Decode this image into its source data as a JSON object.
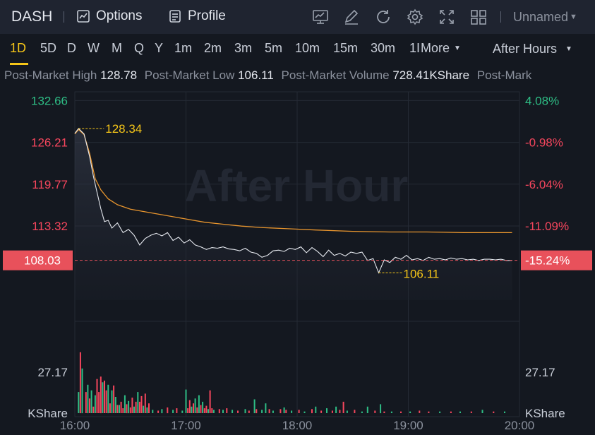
{
  "header": {
    "ticker": "DASH",
    "options_label": "Options",
    "profile_label": "Profile",
    "layout_name": "Unnamed"
  },
  "toolbar_icons": [
    "chart-icon",
    "edit-icon",
    "refresh-icon",
    "gear-icon",
    "fullscreen-icon",
    "grid-icon"
  ],
  "periods": [
    "1D",
    "5D",
    "D",
    "W",
    "M",
    "Q",
    "Y",
    "1m",
    "2m",
    "3m",
    "5m",
    "10m",
    "15m",
    "30m",
    "1I"
  ],
  "active_period": "1D",
  "more_label": "More",
  "session_label": "After Hours",
  "stats": {
    "high_label": "Post-Market High",
    "high_value": "128.78",
    "low_label": "Post-Market Low",
    "low_value": "106.11",
    "volume_label": "Post-Market Volume",
    "volume_value": "728.41KShare",
    "trailing_label": "Post-Mark"
  },
  "colors": {
    "accent": "#f5c518",
    "up": "#2ebd85",
    "down": "#f6465d",
    "price_box": "#e8515b",
    "avg_line": "#e8952e"
  },
  "chart_data": {
    "type": "line",
    "watermark": "After Hour",
    "x_ticks": [
      "16:00",
      "17:00",
      "18:00",
      "19:00",
      "20:00"
    ],
    "y_left_ticks": [
      "132.66",
      "126.21",
      "119.77",
      "113.32"
    ],
    "y_right_ticks": [
      "4.08%",
      "-0.98%",
      "-6.04%",
      "-11.09%"
    ],
    "y_range": [
      101.9,
      134.0
    ],
    "current_price": "108.03",
    "current_change": "-15.24%",
    "high_marker": "128.34",
    "low_marker": "106.11",
    "volume_tick": "27.17",
    "volume_unit": "KShare",
    "price_series": [
      [
        0,
        127.6
      ],
      [
        2,
        128.34
      ],
      [
        5,
        127.5
      ],
      [
        8,
        124
      ],
      [
        10,
        121
      ],
      [
        12,
        118.5
      ],
      [
        14,
        116
      ],
      [
        16,
        114
      ],
      [
        18,
        114.2
      ],
      [
        20,
        113.0
      ],
      [
        23,
        113.8
      ],
      [
        26,
        112.3
      ],
      [
        29,
        112.8
      ],
      [
        32,
        111.9
      ],
      [
        35,
        110.4
      ],
      [
        38,
        111.4
      ],
      [
        41,
        111.9
      ],
      [
        44,
        112.2
      ],
      [
        47,
        111.8
      ],
      [
        50,
        112.3
      ],
      [
        53,
        111.1
      ],
      [
        56,
        111.6
      ],
      [
        59,
        110.7
      ],
      [
        62,
        111.2
      ],
      [
        65,
        110.4
      ],
      [
        68,
        110.1
      ],
      [
        71,
        109.7
      ],
      [
        74,
        110.0
      ],
      [
        77,
        109.9
      ],
      [
        80,
        110.1
      ],
      [
        83,
        109.8
      ],
      [
        86,
        109.7
      ],
      [
        89,
        109.5
      ],
      [
        92,
        109.9
      ],
      [
        95,
        109.3
      ],
      [
        98,
        109.1
      ],
      [
        101,
        108.5
      ],
      [
        104,
        108.8
      ],
      [
        107,
        109.5
      ],
      [
        110,
        109.6
      ],
      [
        113,
        109.4
      ],
      [
        116,
        109.9
      ],
      [
        119,
        109.7
      ],
      [
        122,
        110.1
      ],
      [
        125,
        109.2
      ],
      [
        128,
        110.0
      ],
      [
        131,
        109.4
      ],
      [
        134,
        108.6
      ],
      [
        137,
        109.6
      ],
      [
        140,
        108.8
      ],
      [
        143,
        109.1
      ],
      [
        146,
        108.7
      ],
      [
        149,
        109.3
      ],
      [
        152,
        109.1
      ],
      [
        155,
        109.3
      ],
      [
        158,
        108.0
      ],
      [
        161,
        108.3
      ],
      [
        164,
        106.11
      ],
      [
        167,
        108.1
      ],
      [
        170,
        107.7
      ],
      [
        173,
        108.5
      ],
      [
        176,
        108.2
      ],
      [
        179,
        108.8
      ],
      [
        182,
        108.1
      ],
      [
        185,
        108.3
      ],
      [
        188,
        108.0
      ],
      [
        191,
        108.5
      ],
      [
        194,
        108.2
      ],
      [
        197,
        108.3
      ],
      [
        200,
        108.1
      ],
      [
        203,
        108.4
      ],
      [
        206,
        108.2
      ],
      [
        209,
        108.3
      ],
      [
        212,
        108.1
      ],
      [
        215,
        108.2
      ],
      [
        218,
        108.0
      ],
      [
        221,
        108.2
      ],
      [
        224,
        108.2
      ],
      [
        227,
        108.1
      ],
      [
        230,
        108.2
      ],
      [
        233,
        108.0
      ],
      [
        236,
        108.03
      ]
    ],
    "avg_series": [
      [
        0,
        127.5
      ],
      [
        2,
        128.2
      ],
      [
        5,
        127.4
      ],
      [
        8,
        124.5
      ],
      [
        11,
        120.6
      ],
      [
        14,
        118.9
      ],
      [
        18,
        117.5
      ],
      [
        23,
        116.6
      ],
      [
        30,
        115.9
      ],
      [
        40,
        115.4
      ],
      [
        50,
        114.9
      ],
      [
        60,
        114.4
      ],
      [
        70,
        113.9
      ],
      [
        80,
        113.6
      ],
      [
        90,
        113.3
      ],
      [
        100,
        113.1
      ],
      [
        115,
        112.9
      ],
      [
        130,
        112.7
      ],
      [
        150,
        112.5
      ],
      [
        170,
        112.4
      ],
      [
        190,
        112.4
      ],
      [
        210,
        112.3
      ],
      [
        236,
        112.3
      ]
    ],
    "volume": [
      {
        "t": 2,
        "v": 0.26,
        "c": "up"
      },
      {
        "t": 3,
        "v": 0.75,
        "c": "down"
      },
      {
        "t": 4,
        "v": 0.55,
        "c": "up"
      },
      {
        "t": 6,
        "v": 0.26,
        "c": "down"
      },
      {
        "t": 7,
        "v": 0.35,
        "c": "up"
      },
      {
        "t": 8,
        "v": 0.18,
        "c": "down"
      },
      {
        "t": 9,
        "v": 0.28,
        "c": "up"
      },
      {
        "t": 10,
        "v": 0.08,
        "c": "down"
      },
      {
        "t": 11,
        "v": 0.22,
        "c": "up"
      },
      {
        "t": 12,
        "v": 0.42,
        "c": "down"
      },
      {
        "t": 13,
        "v": 0.26,
        "c": "down"
      },
      {
        "t": 14,
        "v": 0.45,
        "c": "down"
      },
      {
        "t": 15,
        "v": 0.38,
        "c": "up"
      },
      {
        "t": 16,
        "v": 0.4,
        "c": "down"
      },
      {
        "t": 17,
        "v": 0.28,
        "c": "down"
      },
      {
        "t": 18,
        "v": 0.35,
        "c": "up"
      },
      {
        "t": 19,
        "v": 0.12,
        "c": "down"
      },
      {
        "t": 20,
        "v": 0.28,
        "c": "up"
      },
      {
        "t": 21,
        "v": 0.34,
        "c": "down"
      },
      {
        "t": 22,
        "v": 0.2,
        "c": "up"
      },
      {
        "t": 23,
        "v": 0.1,
        "c": "down"
      },
      {
        "t": 24,
        "v": 0.1,
        "c": "up"
      },
      {
        "t": 25,
        "v": 0.14,
        "c": "down"
      },
      {
        "t": 26,
        "v": 0.06,
        "c": "down"
      },
      {
        "t": 27,
        "v": 0.22,
        "c": "up"
      },
      {
        "t": 28,
        "v": 0.11,
        "c": "down"
      },
      {
        "t": 29,
        "v": 0.15,
        "c": "up"
      },
      {
        "t": 30,
        "v": 0.07,
        "c": "down"
      },
      {
        "t": 31,
        "v": 0.19,
        "c": "down"
      },
      {
        "t": 32,
        "v": 0.08,
        "c": "up"
      },
      {
        "t": 33,
        "v": 0.14,
        "c": "down"
      },
      {
        "t": 34,
        "v": 0.26,
        "c": "up"
      },
      {
        "t": 35,
        "v": 0.14,
        "c": "down"
      },
      {
        "t": 36,
        "v": 0.21,
        "c": "down"
      },
      {
        "t": 37,
        "v": 0.09,
        "c": "up"
      },
      {
        "t": 38,
        "v": 0.24,
        "c": "down"
      },
      {
        "t": 39,
        "v": 0.07,
        "c": "up"
      },
      {
        "t": 40,
        "v": 0.12,
        "c": "down"
      },
      {
        "t": 42,
        "v": 0.04,
        "c": "up"
      },
      {
        "t": 45,
        "v": 0.03,
        "c": "down"
      },
      {
        "t": 47,
        "v": 0.05,
        "c": "up"
      },
      {
        "t": 50,
        "v": 0.07,
        "c": "down"
      },
      {
        "t": 53,
        "v": 0.04,
        "c": "up"
      },
      {
        "t": 55,
        "v": 0.06,
        "c": "down"
      },
      {
        "t": 58,
        "v": 0.03,
        "c": "up"
      },
      {
        "t": 60,
        "v": 0.29,
        "c": "up"
      },
      {
        "t": 61,
        "v": 0.06,
        "c": "down"
      },
      {
        "t": 62,
        "v": 0.16,
        "c": "down"
      },
      {
        "t": 63,
        "v": 0.08,
        "c": "up"
      },
      {
        "t": 64,
        "v": 0.12,
        "c": "down"
      },
      {
        "t": 65,
        "v": 0.18,
        "c": "up"
      },
      {
        "t": 66,
        "v": 0.07,
        "c": "down"
      },
      {
        "t": 67,
        "v": 0.22,
        "c": "up"
      },
      {
        "t": 68,
        "v": 0.1,
        "c": "down"
      },
      {
        "t": 69,
        "v": 0.14,
        "c": "up"
      },
      {
        "t": 70,
        "v": 0.06,
        "c": "down"
      },
      {
        "t": 71,
        "v": 0.09,
        "c": "down"
      },
      {
        "t": 72,
        "v": 0.05,
        "c": "up"
      },
      {
        "t": 73,
        "v": 0.28,
        "c": "down"
      },
      {
        "t": 74,
        "v": 0.06,
        "c": "down"
      },
      {
        "t": 75,
        "v": 0.04,
        "c": "up"
      },
      {
        "t": 78,
        "v": 0.05,
        "c": "down"
      },
      {
        "t": 80,
        "v": 0.04,
        "c": "up"
      },
      {
        "t": 82,
        "v": 0.06,
        "c": "down"
      },
      {
        "t": 85,
        "v": 0.04,
        "c": "up"
      },
      {
        "t": 88,
        "v": 0.03,
        "c": "down"
      },
      {
        "t": 92,
        "v": 0.05,
        "c": "up"
      },
      {
        "t": 94,
        "v": 0.03,
        "c": "down"
      },
      {
        "t": 97,
        "v": 0.17,
        "c": "up"
      },
      {
        "t": 98,
        "v": 0.05,
        "c": "down"
      },
      {
        "t": 101,
        "v": 0.04,
        "c": "up"
      },
      {
        "t": 103,
        "v": 0.12,
        "c": "up"
      },
      {
        "t": 105,
        "v": 0.05,
        "c": "down"
      },
      {
        "t": 107,
        "v": 0.03,
        "c": "up"
      },
      {
        "t": 111,
        "v": 0.05,
        "c": "down"
      },
      {
        "t": 113,
        "v": 0.07,
        "c": "up"
      },
      {
        "t": 114,
        "v": 0.04,
        "c": "down"
      },
      {
        "t": 117,
        "v": 0.03,
        "c": "up"
      },
      {
        "t": 121,
        "v": 0.04,
        "c": "down"
      },
      {
        "t": 124,
        "v": 0.02,
        "c": "up"
      },
      {
        "t": 128,
        "v": 0.05,
        "c": "down"
      },
      {
        "t": 130,
        "v": 0.08,
        "c": "up"
      },
      {
        "t": 133,
        "v": 0.03,
        "c": "down"
      },
      {
        "t": 136,
        "v": 0.06,
        "c": "up"
      },
      {
        "t": 139,
        "v": 0.03,
        "c": "down"
      },
      {
        "t": 141,
        "v": 0.08,
        "c": "up"
      },
      {
        "t": 143,
        "v": 0.04,
        "c": "down"
      },
      {
        "t": 145,
        "v": 0.14,
        "c": "down"
      },
      {
        "t": 147,
        "v": 0.03,
        "c": "up"
      },
      {
        "t": 151,
        "v": 0.04,
        "c": "down"
      },
      {
        "t": 155,
        "v": 0.02,
        "c": "up"
      },
      {
        "t": 158,
        "v": 0.08,
        "c": "up"
      },
      {
        "t": 162,
        "v": 0.03,
        "c": "down"
      },
      {
        "t": 165,
        "v": 0.11,
        "c": "up"
      },
      {
        "t": 167,
        "v": 0.02,
        "c": "down"
      },
      {
        "t": 171,
        "v": 0.02,
        "c": "up"
      },
      {
        "t": 176,
        "v": 0.02,
        "c": "down"
      },
      {
        "t": 181,
        "v": 0.02,
        "c": "up"
      },
      {
        "t": 186,
        "v": 0.03,
        "c": "down"
      },
      {
        "t": 191,
        "v": 0.02,
        "c": "down"
      },
      {
        "t": 197,
        "v": 0.02,
        "c": "up"
      },
      {
        "t": 203,
        "v": 0.02,
        "c": "down"
      },
      {
        "t": 208,
        "v": 0.02,
        "c": "up"
      },
      {
        "t": 214,
        "v": 0.02,
        "c": "down"
      },
      {
        "t": 220,
        "v": 0.04,
        "c": "up"
      },
      {
        "t": 226,
        "v": 0.02,
        "c": "down"
      },
      {
        "t": 232,
        "v": 0.02,
        "c": "up"
      }
    ]
  }
}
